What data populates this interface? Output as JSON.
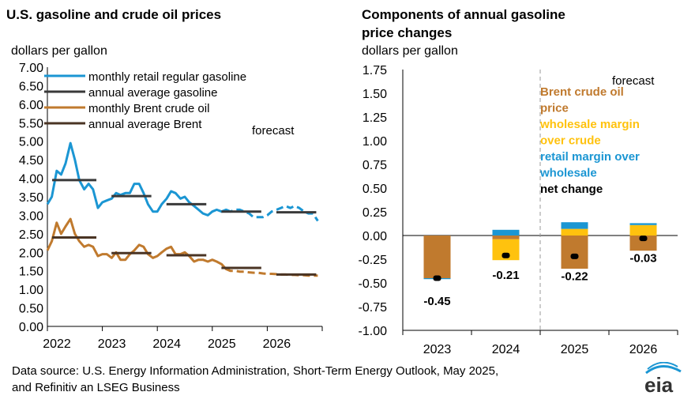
{
  "left_title": "U.S. gasoline and crude oil prices",
  "left_unit": "dollars per gallon",
  "right_title_line1": "Components of annual gasoline",
  "right_title_line2": "price changes",
  "right_unit": "dollars per gallon",
  "source_line1": "Data source: U.S. Energy Information Administration, Short-Term Energy Outlook, May 2025,",
  "source_line2": "and Refinitiv an LSEG Business",
  "logo_text": "eia",
  "colors": {
    "retail": "#1b96d3",
    "annual_gas": "#3a3a3a",
    "brent": "#c07a2e",
    "annual_brent": "#4a3424",
    "wholesale": "#ffc20e",
    "retail_margin": "#1b96d3",
    "net": "#000000"
  },
  "chart_data": [
    {
      "type": "line",
      "title": "U.S. gasoline and crude oil prices",
      "ylabel": "dollars per gallon",
      "ylim": [
        0,
        7
      ],
      "yticks": [
        "0.00",
        "0.50",
        "1.00",
        "1.50",
        "2.00",
        "2.50",
        "3.00",
        "3.50",
        "4.00",
        "4.50",
        "5.00",
        "5.50",
        "6.00",
        "6.50",
        "7.00"
      ],
      "xticks": [
        "2022",
        "2023",
        "2024",
        "2025",
        "2026"
      ],
      "xlim": [
        2022,
        2027
      ],
      "forecast_start": 2025.33,
      "forecast_label": "forecast",
      "series": [
        {
          "name": "monthly retail regular gasoline",
          "x": [
            2022.0,
            2022.08,
            2022.17,
            2022.25,
            2022.33,
            2022.42,
            2022.5,
            2022.58,
            2022.67,
            2022.75,
            2022.83,
            2022.92,
            2023.0,
            2023.08,
            2023.17,
            2023.25,
            2023.33,
            2023.42,
            2023.5,
            2023.58,
            2023.67,
            2023.75,
            2023.83,
            2023.92,
            2024.0,
            2024.08,
            2024.17,
            2024.25,
            2024.33,
            2024.42,
            2024.5,
            2024.58,
            2024.67,
            2024.75,
            2024.83,
            2024.92,
            2025.0,
            2025.08,
            2025.17,
            2025.25,
            2025.33,
            2025.42,
            2025.5,
            2025.58,
            2025.67,
            2025.75,
            2025.83,
            2025.92,
            2026.0,
            2026.08,
            2026.17,
            2026.25,
            2026.33,
            2026.42,
            2026.5,
            2026.58,
            2026.67,
            2026.75,
            2026.83,
            2026.92
          ],
          "values": [
            3.3,
            3.5,
            4.2,
            4.1,
            4.4,
            4.95,
            4.5,
            3.95,
            3.7,
            3.85,
            3.7,
            3.2,
            3.35,
            3.4,
            3.45,
            3.6,
            3.55,
            3.6,
            3.6,
            3.85,
            3.85,
            3.6,
            3.3,
            3.1,
            3.1,
            3.3,
            3.45,
            3.65,
            3.6,
            3.45,
            3.5,
            3.35,
            3.25,
            3.15,
            3.05,
            3.0,
            3.1,
            3.15,
            3.1,
            3.15,
            3.1,
            3.15,
            3.15,
            3.1,
            3.05,
            2.95,
            2.95,
            2.95,
            3.0,
            3.1,
            3.15,
            3.2,
            3.25,
            3.2,
            3.25,
            3.2,
            3.1,
            3.05,
            3.05,
            2.85
          ]
        },
        {
          "name": "annual average gasoline",
          "segments": [
            [
              2022,
              2022.92,
              3.95
            ],
            [
              2023.08,
              2023.92,
              3.52
            ],
            [
              2024.08,
              2024.92,
              3.3
            ],
            [
              2025.08,
              2025.92,
              3.1
            ],
            [
              2026.08,
              2026.92,
              3.08
            ]
          ]
        },
        {
          "name": "monthly Brent crude oil",
          "x": [
            2022.0,
            2022.08,
            2022.17,
            2022.25,
            2022.33,
            2022.42,
            2022.5,
            2022.58,
            2022.67,
            2022.75,
            2022.83,
            2022.92,
            2023.0,
            2023.08,
            2023.17,
            2023.25,
            2023.33,
            2023.42,
            2023.5,
            2023.58,
            2023.67,
            2023.75,
            2023.83,
            2023.92,
            2024.0,
            2024.08,
            2024.17,
            2024.25,
            2024.33,
            2024.42,
            2024.5,
            2024.58,
            2024.67,
            2024.75,
            2024.83,
            2024.92,
            2025.0,
            2025.08,
            2025.17,
            2025.25,
            2025.33,
            2025.42,
            2025.5,
            2025.58,
            2025.67,
            2025.75,
            2025.83,
            2025.92,
            2026.0,
            2026.08,
            2026.17,
            2026.25,
            2026.33,
            2026.42,
            2026.5,
            2026.58,
            2026.67,
            2026.75,
            2026.83,
            2026.92
          ],
          "values": [
            2.05,
            2.3,
            2.8,
            2.5,
            2.7,
            2.9,
            2.5,
            2.3,
            2.15,
            2.2,
            2.15,
            1.9,
            1.95,
            1.95,
            1.85,
            2.0,
            1.8,
            1.8,
            1.95,
            2.05,
            2.2,
            2.15,
            1.95,
            1.85,
            1.9,
            2.0,
            2.1,
            2.15,
            1.95,
            1.95,
            2.0,
            1.9,
            1.75,
            1.8,
            1.8,
            1.75,
            1.8,
            1.75,
            1.68,
            1.55,
            1.5,
            1.5,
            1.48,
            1.48,
            1.46,
            1.45,
            1.45,
            1.43,
            1.42,
            1.42,
            1.41,
            1.4,
            1.4,
            1.39,
            1.39,
            1.38,
            1.38,
            1.37,
            1.37,
            1.37
          ]
        },
        {
          "name": "annual average Brent",
          "segments": [
            [
              2022,
              2022.92,
              2.4
            ],
            [
              2023.08,
              2023.92,
              1.98
            ],
            [
              2024.08,
              2024.92,
              1.92
            ],
            [
              2025.08,
              2025.92,
              1.58
            ],
            [
              2026.08,
              2026.92,
              1.4
            ]
          ]
        }
      ]
    },
    {
      "type": "bar",
      "title": "Components of annual gasoline price changes",
      "ylabel": "dollars per gallon",
      "ylim": [
        -1.0,
        1.75
      ],
      "yticks": [
        "-1.00",
        "-0.75",
        "-0.50",
        "-0.25",
        "0.00",
        "0.25",
        "0.50",
        "0.75",
        "1.00",
        "1.25",
        "1.50",
        "1.75"
      ],
      "categories": [
        "2023",
        "2024",
        "2025",
        "2026"
      ],
      "forecast_label": "forecast",
      "series": [
        {
          "name": "Brent  crude oil price",
          "values": [
            -0.45,
            -0.04,
            -0.35,
            -0.16
          ]
        },
        {
          "name": "wholesale margin over crude",
          "values": [
            0.0,
            -0.22,
            0.07,
            0.11
          ]
        },
        {
          "name": "retail margin over wholesale",
          "values": [
            -0.01,
            0.06,
            0.07,
            0.02
          ]
        },
        {
          "name": "net change",
          "values": [
            -0.45,
            -0.21,
            -0.22,
            -0.03
          ]
        }
      ],
      "net_labels": [
        "-0.45",
        "-0.21",
        "-0.22",
        "-0.03"
      ],
      "legend_lines": [
        {
          "text": "Brent  crude oil",
          "color": "#c07a2e"
        },
        {
          "text": "price",
          "color": "#c07a2e"
        },
        {
          "text": "wholesale margin",
          "color": "#ffc20e"
        },
        {
          "text": " over crude",
          "color": "#ffc20e"
        },
        {
          "text": "retail margin over",
          "color": "#1b96d3"
        },
        {
          "text": "wholesale",
          "color": "#1b96d3"
        },
        {
          "text": "net change",
          "color": "#000000"
        }
      ]
    }
  ]
}
